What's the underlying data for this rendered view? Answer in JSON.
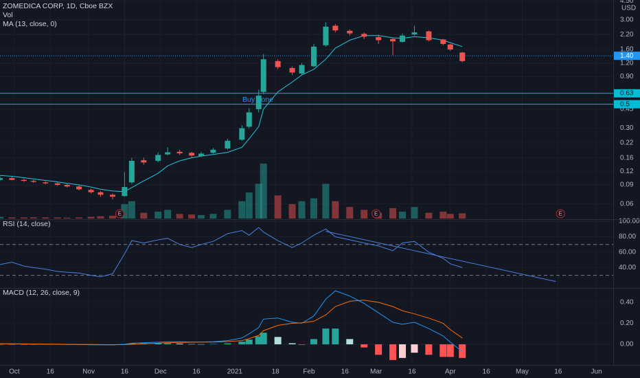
{
  "chart_data": {
    "type": "candlestick",
    "title": "ZOMEDICA CORP, 1D, Cboe BZX",
    "currency": "USD",
    "volume_name": "Vol",
    "ma_name": "MA (13, close, 0)",
    "annotation": "Buy Zone",
    "log_scale": true,
    "grid": true,
    "up_color": "#26a69a",
    "down_color": "#ef5350",
    "ma_color": "#26c6da",
    "xlim": [
      "2020-09-25",
      "2021-06-08"
    ],
    "xticks": [
      {
        "value": "2020-10-01",
        "label": "Oct"
      },
      {
        "value": "2020-10-16",
        "label": "16"
      },
      {
        "value": "2020-11-01",
        "label": "Nov"
      },
      {
        "value": "2020-11-16",
        "label": "16"
      },
      {
        "value": "2020-12-01",
        "label": "Dec"
      },
      {
        "value": "2020-12-16",
        "label": "16"
      },
      {
        "value": "2021-01-01",
        "label": "2021"
      },
      {
        "value": "2021-01-18",
        "label": "18"
      },
      {
        "value": "2021-02-01",
        "label": "Feb"
      },
      {
        "value": "2021-02-16",
        "label": "16"
      },
      {
        "value": "2021-03-01",
        "label": "Mar"
      },
      {
        "value": "2021-03-16",
        "label": "16"
      },
      {
        "value": "2021-04-01",
        "label": "Apr"
      },
      {
        "value": "2021-04-16",
        "label": "16"
      },
      {
        "value": "2021-05-01",
        "label": "May"
      },
      {
        "value": "2021-05-16",
        "label": "16"
      },
      {
        "value": "2021-06-01",
        "label": "Jun"
      }
    ],
    "ylim": [
      0.044,
      4.58
    ],
    "yticks": [
      0.06,
      0.09,
      0.12,
      0.16,
      0.22,
      {
        "value": 0.3,
        "label": "0.30"
      },
      0.45,
      {
        "value": 0.9,
        "label": "0.90"
      },
      {
        "value": 1.2,
        "label": "1.20"
      },
      {
        "value": 1.6,
        "label": "1.60"
      },
      {
        "value": 2.2,
        "label": "2.20"
      },
      {
        "value": 3,
        "label": "3.00"
      },
      {
        "value": 4.5,
        "label": "4.50"
      }
    ],
    "hlines": [
      {
        "value": 1.4,
        "label": "1.40",
        "color": "#2196f3",
        "style": "dotted"
      },
      {
        "value": 0.63,
        "color": "#00bcd4",
        "style": "solid"
      },
      {
        "value": 0.5,
        "color": "#00bcd4",
        "style": "solid"
      }
    ],
    "events": [
      {
        "x": "2020-11-14",
        "label": "E"
      },
      {
        "x": "2021-03-01",
        "label": "E"
      },
      {
        "x": "2021-05-17",
        "label": "E"
      }
    ],
    "x": [
      "2020-09-25",
      "2020-09-30",
      "2020-10-05",
      "2020-10-09",
      "2020-10-14",
      "2020-10-19",
      "2020-10-23",
      "2020-10-28",
      "2020-11-02",
      "2020-11-06",
      "2020-11-11",
      "2020-11-16",
      "2020-11-19",
      "2020-11-24",
      "2020-11-30",
      "2020-12-04",
      "2020-12-09",
      "2020-12-14",
      "2020-12-18",
      "2020-12-23",
      "2020-12-29",
      "2021-01-04",
      "2021-01-07",
      "2021-01-11",
      "2021-01-13",
      "2021-01-19",
      "2021-01-25",
      "2021-01-29",
      "2021-02-03",
      "2021-02-08",
      "2021-02-12",
      "2021-02-18",
      "2021-02-24",
      "2021-03-02",
      "2021-03-08",
      "2021-03-12",
      "2021-03-17",
      "2021-03-23",
      "2021-03-29",
      "2021-04-01",
      "2021-04-06"
    ],
    "open": [
      0.1,
      0.104,
      0.1,
      0.098,
      0.095,
      0.093,
      0.09,
      0.087,
      0.081,
      0.077,
      0.073,
      0.071,
      0.095,
      0.152,
      0.15,
      0.172,
      0.182,
      0.178,
      0.166,
      0.178,
      0.195,
      0.235,
      0.31,
      0.45,
      0.65,
      1.25,
      1.08,
      0.96,
      1.12,
      1.75,
      2.65,
      2.38,
      2.23,
      2.08,
      2.0,
      1.88,
      2.2,
      2.35,
      1.98,
      1.78,
      1.5
    ],
    "high": [
      0.108,
      0.107,
      0.103,
      0.1,
      0.097,
      0.095,
      0.092,
      0.089,
      0.083,
      0.079,
      0.075,
      0.118,
      0.16,
      0.16,
      0.18,
      0.2,
      0.19,
      0.182,
      0.182,
      0.198,
      0.24,
      0.32,
      0.46,
      0.68,
      1.45,
      1.3,
      1.12,
      1.2,
      1.8,
      2.85,
      2.75,
      2.45,
      2.3,
      2.2,
      2.05,
      2.25,
      2.65,
      2.4,
      2.0,
      1.8,
      1.52
    ],
    "low": [
      0.098,
      0.099,
      0.096,
      0.094,
      0.091,
      0.088,
      0.085,
      0.08,
      0.075,
      0.07,
      0.066,
      0.07,
      0.092,
      0.138,
      0.145,
      0.168,
      0.17,
      0.162,
      0.163,
      0.175,
      0.19,
      0.23,
      0.3,
      0.42,
      0.62,
      1.05,
      0.93,
      0.94,
      1.1,
      1.7,
      2.3,
      2.15,
      2.0,
      1.8,
      1.42,
      1.85,
      2.15,
      1.9,
      1.75,
      1.55,
      1.22
    ],
    "close": [
      0.104,
      0.1,
      0.098,
      0.096,
      0.093,
      0.09,
      0.087,
      0.082,
      0.077,
      0.073,
      0.07,
      0.086,
      0.15,
      0.145,
      0.17,
      0.18,
      0.176,
      0.168,
      0.175,
      0.19,
      0.23,
      0.3,
      0.42,
      0.6,
      1.3,
      1.1,
      0.98,
      1.15,
      1.7,
      2.6,
      2.4,
      2.25,
      2.1,
      1.95,
      1.9,
      2.15,
      2.3,
      1.95,
      1.8,
      1.6,
      1.25
    ],
    "volume": [
      3,
      2,
      2,
      2,
      2,
      2,
      1.5,
      2,
      3,
      4,
      5,
      25,
      30,
      10,
      12,
      15,
      8,
      7,
      6,
      8,
      15,
      30,
      45,
      60,
      95,
      40,
      25,
      30,
      35,
      60,
      30,
      20,
      15,
      10,
      18,
      12,
      20,
      10,
      12,
      8,
      9
    ],
    "ma": [
      0.11,
      0.108,
      0.105,
      0.102,
      0.099,
      0.096,
      0.093,
      0.09,
      0.086,
      0.082,
      0.079,
      0.078,
      0.085,
      0.098,
      0.115,
      0.135,
      0.15,
      0.16,
      0.166,
      0.172,
      0.18,
      0.2,
      0.24,
      0.31,
      0.45,
      0.65,
      0.8,
      0.93,
      1.05,
      1.3,
      1.65,
      1.95,
      2.15,
      2.15,
      2.05,
      2.03,
      2.1,
      2.05,
      1.95,
      1.85,
      1.7
    ],
    "rsi": {
      "title": "RSI (14, close)",
      "color": "#4a7fe0",
      "ylim": [
        14.5,
        101.8
      ],
      "yticks": [
        {
          "value": 40,
          "label": "40.00"
        },
        {
          "value": 60,
          "label": "60.00"
        },
        {
          "value": 80,
          "label": "80.00"
        },
        {
          "value": 100,
          "label": "100.00"
        }
      ],
      "levels": [
        70,
        30
      ],
      "values": [
        44,
        47,
        42,
        40,
        38,
        35,
        34,
        33,
        30,
        28,
        32,
        58,
        75,
        72,
        76,
        78,
        70,
        66,
        70,
        74,
        84,
        88,
        82,
        92,
        86,
        75,
        66,
        72,
        82,
        90,
        80,
        76,
        72,
        68,
        62,
        72,
        74,
        60,
        52,
        45,
        40
      ],
      "trendline": {
        "x": [
          "2021-02-08",
          "2021-05-15"
        ],
        "values": [
          87,
          22
        ]
      }
    },
    "macd": {
      "title": "MACD (12, 26, close, 9)",
      "macd_color": "#2196f3",
      "signal_color": "#ff6d00",
      "ylim": [
        -0.19,
        0.53
      ],
      "yticks": [
        {
          "value": 0,
          "label": "0.00"
        },
        {
          "value": 0.2,
          "label": "0.20"
        },
        {
          "value": 0.4,
          "label": "0.40"
        }
      ],
      "macd": [
        0.005,
        0.004,
        0.003,
        0.002,
        0.001,
        0.0,
        -0.002,
        -0.003,
        -0.004,
        -0.005,
        -0.005,
        0.0,
        0.01,
        0.015,
        0.02,
        0.025,
        0.025,
        0.022,
        0.022,
        0.025,
        0.035,
        0.06,
        0.1,
        0.16,
        0.24,
        0.25,
        0.21,
        0.2,
        0.27,
        0.43,
        0.51,
        0.46,
        0.39,
        0.3,
        0.21,
        0.19,
        0.21,
        0.15,
        0.08,
        0.02,
        -0.07
      ],
      "signal": [
        0.005,
        0.005,
        0.004,
        0.003,
        0.002,
        0.001,
        0.0,
        -0.001,
        -0.002,
        -0.003,
        -0.004,
        -0.003,
        0.0,
        0.005,
        0.01,
        0.015,
        0.018,
        0.02,
        0.021,
        0.022,
        0.026,
        0.035,
        0.055,
        0.085,
        0.13,
        0.18,
        0.2,
        0.205,
        0.22,
        0.28,
        0.36,
        0.41,
        0.42,
        0.4,
        0.36,
        0.32,
        0.29,
        0.25,
        0.2,
        0.14,
        0.06
      ],
      "histogram": [
        0,
        -0.001,
        -0.001,
        -0.001,
        -0.001,
        -0.001,
        -0.002,
        -0.002,
        -0.002,
        -0.002,
        -0.001,
        0.003,
        0.01,
        0.01,
        0.01,
        0.01,
        0.007,
        0.002,
        0.001,
        0.003,
        0.009,
        0.025,
        0.045,
        0.075,
        0.11,
        0.07,
        0.01,
        -0.005,
        0.05,
        0.15,
        0.15,
        0.05,
        -0.03,
        -0.1,
        -0.15,
        -0.13,
        -0.08,
        -0.1,
        -0.12,
        -0.12,
        -0.13
      ]
    }
  }
}
